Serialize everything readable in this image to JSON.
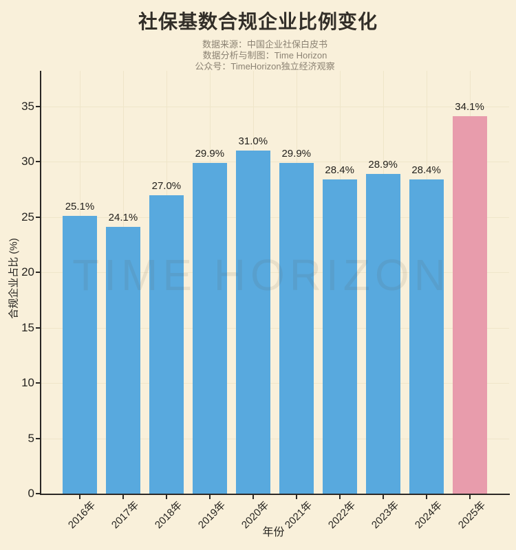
{
  "header": {
    "title": "社保基数合规企业比例变化",
    "subtitle_lines": [
      "数据来源：中国企业社保白皮书",
      "数据分析与制图：Time Horizon",
      "公众号：TimeHorizon独立经济观察"
    ]
  },
  "watermark": "TIME HORIZON",
  "colors": {
    "background": "#f9f0da",
    "bar_default": "#58a9de",
    "bar_highlight": "#e89cac",
    "title_text": "#322e28",
    "subtitle_text": "#8b8273",
    "axis_text": "#262420",
    "gridline": "#efe5c9"
  },
  "chart_data": {
    "type": "bar",
    "title": "社保基数合规企业比例变化",
    "categories": [
      "2016年",
      "2017年",
      "2018年",
      "2019年",
      "2020年",
      "2021年",
      "2022年",
      "2023年",
      "2024年",
      "2025年"
    ],
    "values": [
      25.1,
      24.1,
      27.0,
      29.9,
      31.0,
      29.9,
      28.4,
      28.9,
      28.4,
      34.1
    ],
    "value_labels": [
      "25.1%",
      "24.1%",
      "27.0%",
      "29.9%",
      "31.0%",
      "29.9%",
      "28.4%",
      "28.9%",
      "28.4%",
      "34.1%"
    ],
    "xlabel": "年份",
    "ylabel": "合规企业占比 (%)",
    "ylim": [
      0,
      38.2
    ],
    "yticks": [
      0,
      5,
      10,
      15,
      20,
      25,
      30,
      35
    ],
    "grid": true,
    "legend": null,
    "highlight_index": 9,
    "bar_colors": {
      "default": "#58a9de",
      "highlight": "#e89cac"
    }
  }
}
